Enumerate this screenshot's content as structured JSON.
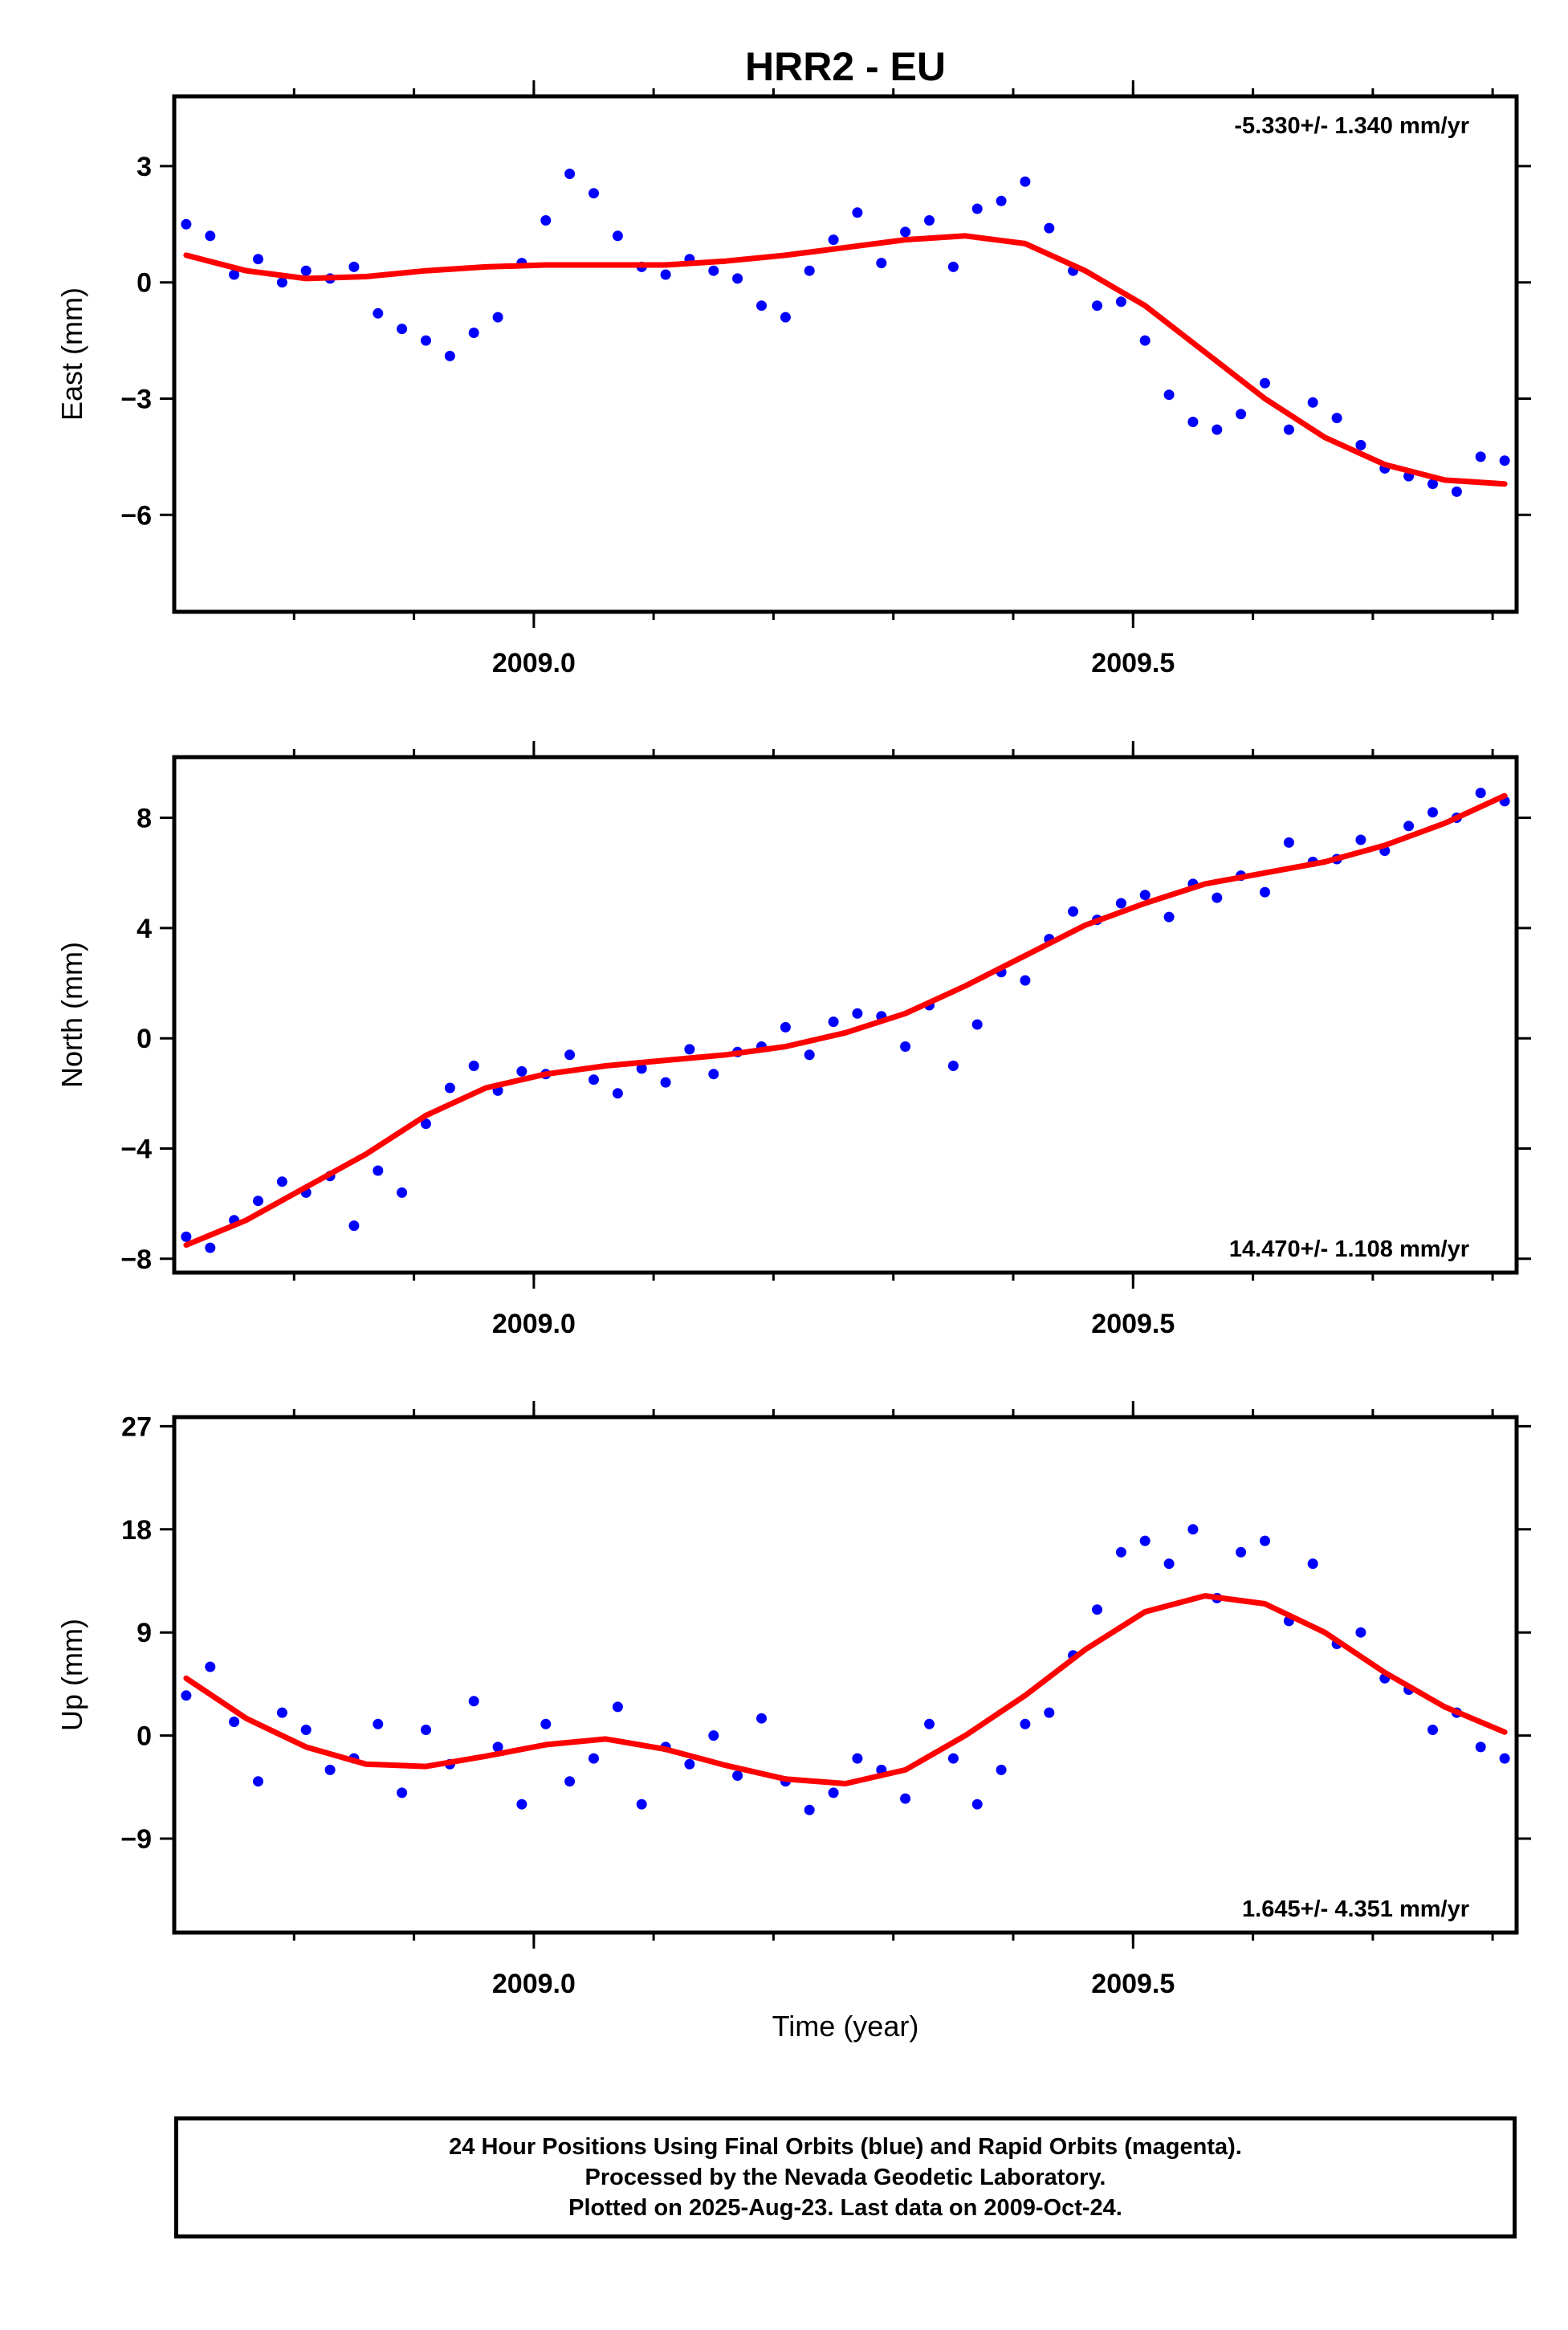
{
  "page": {
    "title": "HRR2 - EU",
    "xlabel": "Time (year)",
    "footer_lines": [
      "24 Hour Positions Using Final Orbits (blue) and Rapid Orbits (magenta).",
      "Processed by the Nevada Geodetic Laboratory.",
      "Plotted on 2025-Aug-23. Last data on 2009-Oct-24."
    ],
    "colors": {
      "final_orbits": "#0000ff",
      "trend": "#ff0000"
    }
  },
  "chart_data": [
    {
      "type": "scatter",
      "panel": "east",
      "ylabel": "East (mm)",
      "xlim": [
        2008.7,
        2009.82
      ],
      "ylim": [
        -8.5,
        4.8
      ],
      "yticks": [
        3,
        0,
        -3,
        -6
      ],
      "ytick_labels": [
        "3",
        "0",
        "−3",
        "−6"
      ],
      "xtick_labels": [
        "2009.0",
        "2009.5"
      ],
      "xticks": [
        2009.0,
        2009.5
      ],
      "rate_label": "-5.330+/- 1.340 mm/yr",
      "rate_position": "top-right",
      "series": [
        {
          "kind": "points",
          "x": [
            2008.71,
            2008.73,
            2008.75,
            2008.77,
            2008.79,
            2008.81,
            2008.83,
            2008.85,
            2008.87,
            2008.89,
            2008.91,
            2008.93,
            2008.95,
            2008.97,
            2008.99,
            2009.01,
            2009.03,
            2009.05,
            2009.07,
            2009.09,
            2009.11,
            2009.13,
            2009.15,
            2009.17,
            2009.19,
            2009.21,
            2009.23,
            2009.25,
            2009.27,
            2009.29,
            2009.31,
            2009.33,
            2009.35,
            2009.37,
            2009.39,
            2009.41,
            2009.43,
            2009.45,
            2009.47,
            2009.49,
            2009.51,
            2009.53,
            2009.55,
            2009.57,
            2009.59,
            2009.61,
            2009.63,
            2009.65,
            2009.67,
            2009.69,
            2009.71,
            2009.73,
            2009.75,
            2009.77,
            2009.79,
            2009.81
          ],
          "y": [
            1.5,
            1.2,
            0.2,
            0.6,
            0.0,
            0.3,
            0.1,
            0.4,
            -0.8,
            -1.2,
            -1.5,
            -1.9,
            -1.3,
            -0.9,
            0.5,
            1.6,
            2.8,
            2.3,
            1.2,
            0.4,
            0.2,
            0.6,
            0.3,
            0.1,
            -0.6,
            -0.9,
            0.3,
            1.1,
            1.8,
            0.5,
            1.3,
            1.6,
            0.4,
            1.9,
            2.1,
            2.6,
            1.4,
            0.3,
            -0.6,
            -0.5,
            -1.5,
            -2.9,
            -3.6,
            -3.8,
            -3.4,
            -2.6,
            -3.8,
            -3.1,
            -3.5,
            -4.2,
            -4.8,
            -5.0,
            -5.2,
            -5.4,
            -4.5,
            -4.6
          ]
        },
        {
          "kind": "trend",
          "x": [
            2008.71,
            2008.76,
            2008.81,
            2008.86,
            2008.91,
            2008.96,
            2009.01,
            2009.06,
            2009.11,
            2009.16,
            2009.21,
            2009.26,
            2009.31,
            2009.36,
            2009.41,
            2009.46,
            2009.51,
            2009.56,
            2009.61,
            2009.66,
            2009.71,
            2009.76,
            2009.81
          ],
          "y": [
            0.7,
            0.3,
            0.1,
            0.15,
            0.3,
            0.4,
            0.45,
            0.45,
            0.45,
            0.55,
            0.7,
            0.9,
            1.1,
            1.2,
            1.0,
            0.3,
            -0.6,
            -1.8,
            -3.0,
            -4.0,
            -4.7,
            -5.1,
            -5.2
          ]
        }
      ]
    },
    {
      "type": "scatter",
      "panel": "north",
      "ylabel": "North (mm)",
      "xlim": [
        2008.7,
        2009.82
      ],
      "ylim": [
        -8.5,
        10.2
      ],
      "yticks": [
        8,
        4,
        0,
        -4,
        -8
      ],
      "ytick_labels": [
        "8",
        "4",
        "0",
        "−4",
        "−8"
      ],
      "xtick_labels": [
        "2009.0",
        "2009.5"
      ],
      "xticks": [
        2009.0,
        2009.5
      ],
      "rate_label": "14.470+/- 1.108 mm/yr",
      "rate_position": "bottom-right",
      "series": [
        {
          "kind": "points",
          "x": [
            2008.71,
            2008.73,
            2008.75,
            2008.77,
            2008.79,
            2008.81,
            2008.83,
            2008.85,
            2008.87,
            2008.89,
            2008.91,
            2008.93,
            2008.95,
            2008.97,
            2008.99,
            2009.01,
            2009.03,
            2009.05,
            2009.07,
            2009.09,
            2009.11,
            2009.13,
            2009.15,
            2009.17,
            2009.19,
            2009.21,
            2009.23,
            2009.25,
            2009.27,
            2009.29,
            2009.31,
            2009.33,
            2009.35,
            2009.37,
            2009.39,
            2009.41,
            2009.43,
            2009.45,
            2009.47,
            2009.49,
            2009.51,
            2009.53,
            2009.55,
            2009.57,
            2009.59,
            2009.61,
            2009.63,
            2009.65,
            2009.67,
            2009.69,
            2009.71,
            2009.73,
            2009.75,
            2009.77,
            2009.79,
            2009.81
          ],
          "y": [
            -7.2,
            -7.6,
            -6.6,
            -5.9,
            -5.2,
            -5.6,
            -5.0,
            -6.8,
            -4.8,
            -5.6,
            -3.1,
            -1.8,
            -1.0,
            -1.9,
            -1.2,
            -1.3,
            -0.6,
            -1.5,
            -2.0,
            -1.1,
            -1.6,
            -0.4,
            -1.3,
            -0.5,
            -0.3,
            0.4,
            -0.6,
            0.6,
            0.9,
            0.8,
            -0.3,
            1.2,
            -1.0,
            0.5,
            2.4,
            2.1,
            3.6,
            4.6,
            4.3,
            4.9,
            5.2,
            4.4,
            5.6,
            5.1,
            5.9,
            5.3,
            7.1,
            6.4,
            6.5,
            7.2,
            6.8,
            7.7,
            8.2,
            8.0,
            8.9,
            8.6
          ]
        },
        {
          "kind": "trend",
          "x": [
            2008.71,
            2008.76,
            2008.81,
            2008.86,
            2008.91,
            2008.96,
            2009.01,
            2009.06,
            2009.11,
            2009.16,
            2009.21,
            2009.26,
            2009.31,
            2009.36,
            2009.41,
            2009.46,
            2009.51,
            2009.56,
            2009.61,
            2009.66,
            2009.71,
            2009.76,
            2009.81
          ],
          "y": [
            -7.5,
            -6.6,
            -5.4,
            -4.2,
            -2.8,
            -1.8,
            -1.3,
            -1.0,
            -0.8,
            -0.6,
            -0.3,
            0.2,
            0.9,
            1.9,
            3.0,
            4.1,
            4.9,
            5.6,
            6.0,
            6.4,
            7.0,
            7.8,
            8.8
          ]
        }
      ]
    },
    {
      "type": "scatter",
      "panel": "up",
      "ylabel": "Up (mm)",
      "xlim": [
        2008.7,
        2009.82
      ],
      "ylim": [
        -17.2,
        27.8
      ],
      "yticks": [
        27,
        18,
        9,
        0,
        -9
      ],
      "ytick_labels": [
        "27",
        "18",
        "9",
        "0",
        "−9"
      ],
      "xtick_labels": [
        "2009.0",
        "2009.5"
      ],
      "xticks": [
        2009.0,
        2009.5
      ],
      "rate_label": "1.645+/- 4.351 mm/yr",
      "rate_position": "bottom-right",
      "series": [
        {
          "kind": "points",
          "x": [
            2008.71,
            2008.73,
            2008.75,
            2008.77,
            2008.79,
            2008.81,
            2008.83,
            2008.85,
            2008.87,
            2008.89,
            2008.91,
            2008.93,
            2008.95,
            2008.97,
            2008.99,
            2009.01,
            2009.03,
            2009.05,
            2009.07,
            2009.09,
            2009.11,
            2009.13,
            2009.15,
            2009.17,
            2009.19,
            2009.21,
            2009.23,
            2009.25,
            2009.27,
            2009.29,
            2009.31,
            2009.33,
            2009.35,
            2009.37,
            2009.39,
            2009.41,
            2009.43,
            2009.45,
            2009.47,
            2009.49,
            2009.51,
            2009.53,
            2009.55,
            2009.57,
            2009.59,
            2009.61,
            2009.63,
            2009.65,
            2009.67,
            2009.69,
            2009.71,
            2009.73,
            2009.75,
            2009.77,
            2009.79,
            2009.81
          ],
          "y": [
            3.5,
            6.0,
            1.2,
            -4.0,
            2.0,
            0.5,
            -3.0,
            -2.0,
            1.0,
            -5.0,
            0.5,
            -2.5,
            3.0,
            -1.0,
            -6.0,
            1.0,
            -4.0,
            -2.0,
            2.5,
            -6.0,
            -1.0,
            -2.5,
            0.0,
            -3.5,
            1.5,
            -4.0,
            -6.5,
            -5.0,
            -2.0,
            -3.0,
            -5.5,
            1.0,
            -2.0,
            -6.0,
            -3.0,
            1.0,
            2.0,
            7.0,
            11.0,
            16.0,
            17.0,
            15.0,
            18.0,
            12.0,
            16.0,
            17.0,
            10.0,
            15.0,
            8.0,
            9.0,
            5.0,
            4.0,
            0.5,
            2.0,
            -1.0,
            -2.0
          ]
        },
        {
          "kind": "trend",
          "x": [
            2008.71,
            2008.76,
            2008.81,
            2008.86,
            2008.91,
            2008.96,
            2009.01,
            2009.06,
            2009.11,
            2009.16,
            2009.21,
            2009.26,
            2009.31,
            2009.36,
            2009.41,
            2009.46,
            2009.51,
            2009.56,
            2009.61,
            2009.66,
            2009.71,
            2009.76,
            2009.81
          ],
          "y": [
            5.0,
            1.5,
            -1.0,
            -2.5,
            -2.7,
            -1.8,
            -0.8,
            -0.3,
            -1.2,
            -2.6,
            -3.8,
            -4.2,
            -3.0,
            0.0,
            3.5,
            7.5,
            10.8,
            12.2,
            11.5,
            9.0,
            5.5,
            2.5,
            0.3
          ]
        }
      ]
    }
  ]
}
